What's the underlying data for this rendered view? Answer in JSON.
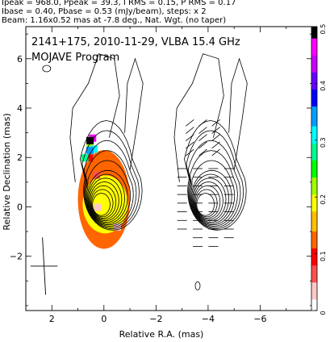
{
  "header": {
    "line1": "Ipeak = 968.0, Ppeak = 39.3, I RMS = 0.15, P RMS = 0.17",
    "line2": "Ibase = 0.40, Pbase = 0.53 (mJy/beam), steps: x 2",
    "line3": "Beam: 1.16x0.52 mas at -7.8 deg., Nat. Wgt. (no taper)"
  },
  "plot": {
    "title_line1": "2141+175, 2010-11-29, VLBA 15.4 GHz",
    "title_line2": "MOJAVE Program"
  },
  "chart_data": {
    "type": "contour",
    "xlabel": "Relative R.A. (mas)",
    "ylabel": "Relative Declination (mas)",
    "xlim": [
      3.0,
      -8.0
    ],
    "ylim": [
      -4.2,
      7.3
    ],
    "x_ticks": [
      2,
      0,
      -2,
      -4,
      -6
    ],
    "y_ticks": [
      -2,
      0,
      2,
      4,
      6
    ],
    "x_offset_second_map": -4,
    "colorbar": {
      "min": 0,
      "max": 0.5,
      "ticks": [
        0,
        0.1,
        0.2,
        0.3,
        0.4,
        0.5
      ],
      "colors": [
        "#ffffff",
        "#ffc8c8",
        "#ff5050",
        "#ff0000",
        "#ff6600",
        "#ffc000",
        "#ffff00",
        "#a0ff00",
        "#00ff00",
        "#00ff90",
        "#00ffff",
        "#00a0ff",
        "#0000ff",
        "#6600ff",
        "#cc00ff",
        "#ff00ff",
        "#000000"
      ]
    },
    "polarization_patch": [
      {
        "x": 0.25,
        "y": 0.0,
        "frac": 0.02
      },
      {
        "x": -0.5,
        "y": -0.8,
        "frac": 0.02
      },
      {
        "x": 0.3,
        "y": 1.3,
        "frac": 0.05
      },
      {
        "x": 0.5,
        "y": 2.0,
        "frac": 0.08
      },
      {
        "x": 0.3,
        "y": 2.0,
        "frac": 0.11
      },
      {
        "x": 0.55,
        "y": 2.6,
        "frac": 0.22
      },
      {
        "x": 0.75,
        "y": 2.0,
        "frac": 0.27
      },
      {
        "x": 0.4,
        "y": 2.35,
        "frac": 0.3
      },
      {
        "x": 0.55,
        "y": 2.3,
        "frac": 0.35
      },
      {
        "x": 0.45,
        "y": 2.8,
        "frac": 0.46
      },
      {
        "x": 0.55,
        "y": 2.7,
        "frac": 0.5
      }
    ],
    "beam": {
      "major_mas": 1.16,
      "minor_mas": 0.52,
      "pa_deg": -7.8
    }
  }
}
